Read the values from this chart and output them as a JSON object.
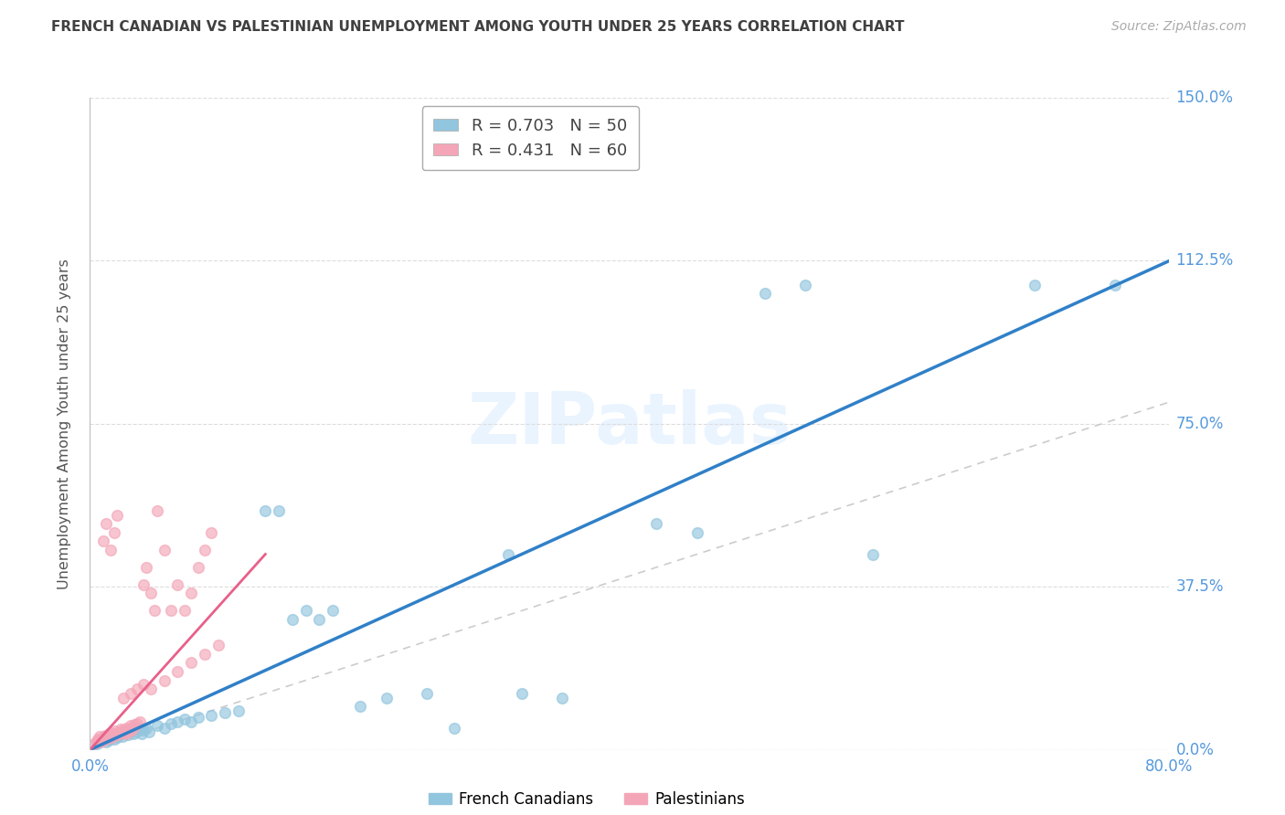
{
  "title": "FRENCH CANADIAN VS PALESTINIAN UNEMPLOYMENT AMONG YOUTH UNDER 25 YEARS CORRELATION CHART",
  "source": "Source: ZipAtlas.com",
  "ylabel": "Unemployment Among Youth under 25 years",
  "ytick_labels": [
    "0.0%",
    "37.5%",
    "75.0%",
    "112.5%",
    "150.0%"
  ],
  "ytick_values": [
    0.0,
    0.375,
    0.75,
    1.125,
    1.5
  ],
  "xlim": [
    0.0,
    0.8
  ],
  "ylim": [
    0.0,
    1.5
  ],
  "blue_R": 0.703,
  "blue_N": 50,
  "pink_R": 0.431,
  "pink_N": 60,
  "blue_color": "#92c5de",
  "pink_color": "#f4a6b8",
  "blue_line_color": "#3080c8",
  "pink_line_color": "#e8608a",
  "diag_line_color": "#cccccc",
  "grid_color": "#dddddd",
  "title_color": "#404040",
  "axis_label_color": "#555555",
  "tick_label_color": "#5599dd",
  "legend_label_blue": "French Canadians",
  "legend_label_pink": "Palestinians",
  "blue_line_x": [
    0.0,
    0.8
  ],
  "blue_line_y": [
    0.0,
    1.125
  ],
  "pink_line_x": [
    0.0,
    0.13
  ],
  "pink_line_y": [
    0.0,
    0.45
  ],
  "blue_scatter_x": [
    0.005,
    0.008,
    0.01,
    0.012,
    0.014,
    0.016,
    0.018,
    0.02,
    0.022,
    0.024,
    0.026,
    0.028,
    0.03,
    0.032,
    0.034,
    0.036,
    0.038,
    0.04,
    0.042,
    0.044,
    0.05,
    0.055,
    0.06,
    0.065,
    0.07,
    0.075,
    0.08,
    0.09,
    0.1,
    0.11,
    0.13,
    0.14,
    0.15,
    0.16,
    0.17,
    0.18,
    0.2,
    0.22,
    0.25,
    0.27,
    0.31,
    0.32,
    0.35,
    0.42,
    0.45,
    0.5,
    0.53,
    0.58,
    0.7,
    0.76
  ],
  "blue_scatter_y": [
    0.015,
    0.02,
    0.025,
    0.018,
    0.022,
    0.03,
    0.025,
    0.028,
    0.035,
    0.03,
    0.04,
    0.035,
    0.045,
    0.038,
    0.042,
    0.048,
    0.038,
    0.045,
    0.05,
    0.042,
    0.055,
    0.05,
    0.06,
    0.065,
    0.07,
    0.065,
    0.075,
    0.08,
    0.085,
    0.09,
    0.55,
    0.55,
    0.3,
    0.32,
    0.3,
    0.32,
    0.1,
    0.12,
    0.13,
    0.05,
    0.45,
    0.13,
    0.12,
    0.52,
    0.5,
    1.05,
    1.07,
    0.45,
    1.07,
    1.07
  ],
  "pink_scatter_x": [
    0.003,
    0.005,
    0.006,
    0.007,
    0.008,
    0.009,
    0.01,
    0.011,
    0.012,
    0.013,
    0.014,
    0.015,
    0.016,
    0.017,
    0.018,
    0.019,
    0.02,
    0.021,
    0.022,
    0.023,
    0.024,
    0.025,
    0.026,
    0.027,
    0.028,
    0.029,
    0.03,
    0.031,
    0.032,
    0.033,
    0.035,
    0.037,
    0.04,
    0.042,
    0.045,
    0.048,
    0.05,
    0.055,
    0.06,
    0.065,
    0.07,
    0.075,
    0.08,
    0.085,
    0.09,
    0.01,
    0.012,
    0.015,
    0.018,
    0.02,
    0.025,
    0.03,
    0.035,
    0.04,
    0.045,
    0.055,
    0.065,
    0.075,
    0.085,
    0.095
  ],
  "pink_scatter_y": [
    0.015,
    0.02,
    0.025,
    0.03,
    0.018,
    0.022,
    0.028,
    0.032,
    0.025,
    0.03,
    0.035,
    0.04,
    0.028,
    0.033,
    0.038,
    0.043,
    0.035,
    0.038,
    0.042,
    0.048,
    0.04,
    0.045,
    0.038,
    0.05,
    0.042,
    0.048,
    0.055,
    0.045,
    0.052,
    0.058,
    0.06,
    0.065,
    0.38,
    0.42,
    0.36,
    0.32,
    0.55,
    0.46,
    0.32,
    0.38,
    0.32,
    0.36,
    0.42,
    0.46,
    0.5,
    0.48,
    0.52,
    0.46,
    0.5,
    0.54,
    0.12,
    0.13,
    0.14,
    0.15,
    0.14,
    0.16,
    0.18,
    0.2,
    0.22,
    0.24
  ]
}
